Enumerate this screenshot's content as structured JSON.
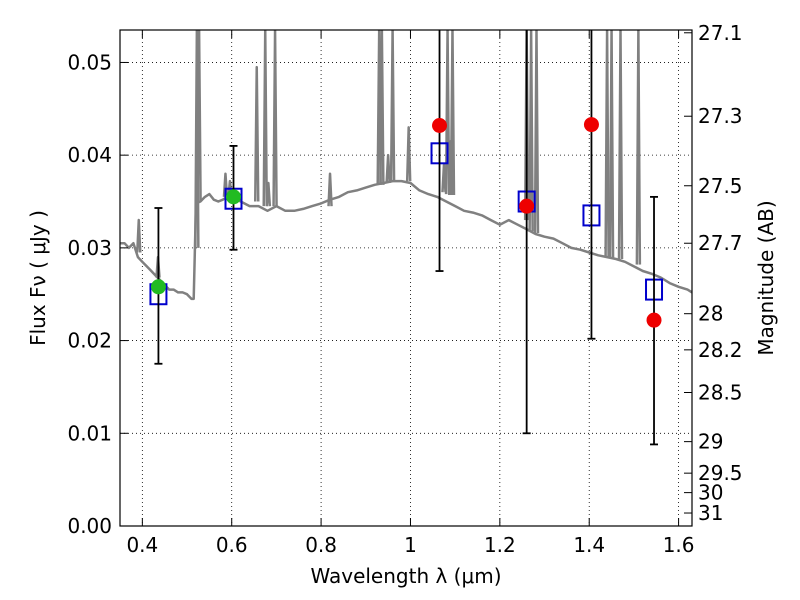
{
  "chart_data": {
    "type": "scatter",
    "title": "",
    "xlabel": "Wavelength  λ (μm)",
    "ylabel": "Flux  Fν  ( μJy )",
    "ylabel_right": "Magnitude (AB)",
    "xlim": [
      0.35,
      1.63
    ],
    "ylim": [
      0.0,
      0.0535
    ],
    "grid": true,
    "x_ticks": [
      0.4,
      0.6,
      0.8,
      1.0,
      1.2,
      1.4,
      1.6
    ],
    "x_tick_labels": [
      "0.4",
      "0.6",
      "0.8",
      "1",
      "1.2",
      "1.4",
      "1.6"
    ],
    "y_ticks": [
      0.0,
      0.01,
      0.02,
      0.03,
      0.04,
      0.05
    ],
    "y_tick_labels": [
      "0.00",
      "0.01",
      "0.02",
      "0.03",
      "0.04",
      "0.05"
    ],
    "right_ticks": [
      {
        "flux": 0.0532,
        "label": "27.1"
      },
      {
        "flux": 0.0442,
        "label": "27.3"
      },
      {
        "flux": 0.0367,
        "label": "27.5"
      },
      {
        "flux": 0.0305,
        "label": "27.7"
      },
      {
        "flux": 0.0229,
        "label": "28"
      },
      {
        "flux": 0.019,
        "label": "28.2"
      },
      {
        "flux": 0.0144,
        "label": "28.5"
      },
      {
        "flux": 0.0091,
        "label": "29"
      },
      {
        "flux": 0.0057,
        "label": "29.5"
      },
      {
        "flux": 0.0036,
        "label": "30"
      },
      {
        "flux": 0.0014,
        "label": "31"
      }
    ],
    "series": [
      {
        "name": "Model SED",
        "kind": "line",
        "color": "#808080",
        "x": [
          0.35,
          0.36,
          0.37,
          0.38,
          0.39,
          0.4,
          0.41,
          0.42,
          0.43,
          0.44,
          0.45,
          0.46,
          0.47,
          0.48,
          0.49,
          0.5,
          0.51,
          0.515,
          0.52,
          0.53,
          0.54,
          0.55,
          0.56,
          0.57,
          0.58,
          0.59,
          0.6,
          0.62,
          0.64,
          0.66,
          0.68,
          0.7,
          0.72,
          0.74,
          0.76,
          0.78,
          0.8,
          0.82,
          0.84,
          0.86,
          0.88,
          0.9,
          0.92,
          0.94,
          0.96,
          0.98,
          1.0,
          1.02,
          1.04,
          1.06,
          1.08,
          1.1,
          1.12,
          1.14,
          1.16,
          1.18,
          1.2,
          1.22,
          1.24,
          1.26,
          1.28,
          1.3,
          1.32,
          1.34,
          1.36,
          1.38,
          1.4,
          1.42,
          1.44,
          1.46,
          1.48,
          1.5,
          1.52,
          1.54,
          1.56,
          1.58,
          1.6,
          1.62,
          1.63
        ],
        "y": [
          0.0305,
          0.0305,
          0.03,
          0.0305,
          0.029,
          0.0285,
          0.028,
          0.0275,
          0.027,
          0.0265,
          0.026,
          0.0255,
          0.0255,
          0.0252,
          0.0252,
          0.025,
          0.0245,
          0.0245,
          0.0348,
          0.035,
          0.0355,
          0.0358,
          0.0352,
          0.035,
          0.0352,
          0.0355,
          0.0355,
          0.035,
          0.0345,
          0.0345,
          0.034,
          0.0345,
          0.034,
          0.034,
          0.0342,
          0.0345,
          0.0348,
          0.0352,
          0.0355,
          0.036,
          0.0362,
          0.0365,
          0.0368,
          0.037,
          0.0372,
          0.0372,
          0.037,
          0.0362,
          0.0358,
          0.0355,
          0.035,
          0.0345,
          0.034,
          0.0338,
          0.0335,
          0.033,
          0.0325,
          0.033,
          0.0325,
          0.032,
          0.0315,
          0.0312,
          0.031,
          0.0305,
          0.03,
          0.0298,
          0.0295,
          0.0292,
          0.029,
          0.0288,
          0.0285,
          0.028,
          0.0275,
          0.0272,
          0.0268,
          0.0262,
          0.0258,
          0.0255,
          0.0252
        ]
      },
      {
        "name": "Model SED emission lines",
        "kind": "spikes",
        "color": "#808080",
        "x": [
          0.392,
          0.435,
          0.522,
          0.527,
          0.586,
          0.596,
          0.656,
          0.675,
          0.682,
          0.697,
          0.82,
          0.93,
          0.936,
          0.95,
          0.96,
          0.996,
          1.075,
          1.083,
          1.09,
          1.094,
          1.26,
          1.27,
          1.282,
          1.44,
          1.45,
          1.47,
          1.51
        ],
        "base": [
          0.0295,
          0.0268,
          0.03,
          0.035,
          0.0355,
          0.0355,
          0.035,
          0.0345,
          0.0345,
          0.0345,
          0.0345,
          0.0368,
          0.0368,
          0.037,
          0.0371,
          0.0372,
          0.036,
          0.0358,
          0.0357,
          0.0357,
          0.033,
          0.0318,
          0.0316,
          0.029,
          0.0289,
          0.0288,
          0.0282
        ],
        "top": [
          0.033,
          0.029,
          0.0535,
          0.0535,
          0.038,
          0.0372,
          0.0495,
          0.0535,
          0.037,
          0.0535,
          0.038,
          0.0535,
          0.0535,
          0.04,
          0.0535,
          0.043,
          0.039,
          0.0535,
          0.0415,
          0.0535,
          0.0535,
          0.0535,
          0.0535,
          0.0535,
          0.0535,
          0.0535,
          0.0535
        ]
      },
      {
        "name": "Model photometry",
        "kind": "open-square",
        "color": "#0000cc",
        "x": [
          0.436,
          0.604,
          1.065,
          1.26,
          1.405,
          1.545
        ],
        "y": [
          0.025,
          0.0353,
          0.0402,
          0.035,
          0.0335,
          0.0255
        ]
      },
      {
        "name": "Error bars",
        "kind": "errorbar",
        "color": "#000000",
        "x": [
          0.436,
          0.604,
          1.065,
          1.26,
          1.405,
          1.545
        ],
        "low": [
          0.0175,
          0.0298,
          0.0275,
          0.01,
          0.0202,
          0.0088
        ],
        "high": [
          0.0343,
          0.041,
          0.0535,
          0.0535,
          0.0535,
          0.0355
        ]
      },
      {
        "name": "Detections",
        "kind": "filled-circle",
        "color": "#22bb22",
        "x": [
          0.436,
          0.604
        ],
        "y": [
          0.0258,
          0.0355
        ]
      },
      {
        "name": "Upper limits",
        "kind": "filled-circle",
        "color": "#ee0000",
        "x": [
          1.065,
          1.26,
          1.405,
          1.545
        ],
        "y": [
          0.0432,
          0.0345,
          0.0433,
          0.0222
        ]
      }
    ]
  }
}
